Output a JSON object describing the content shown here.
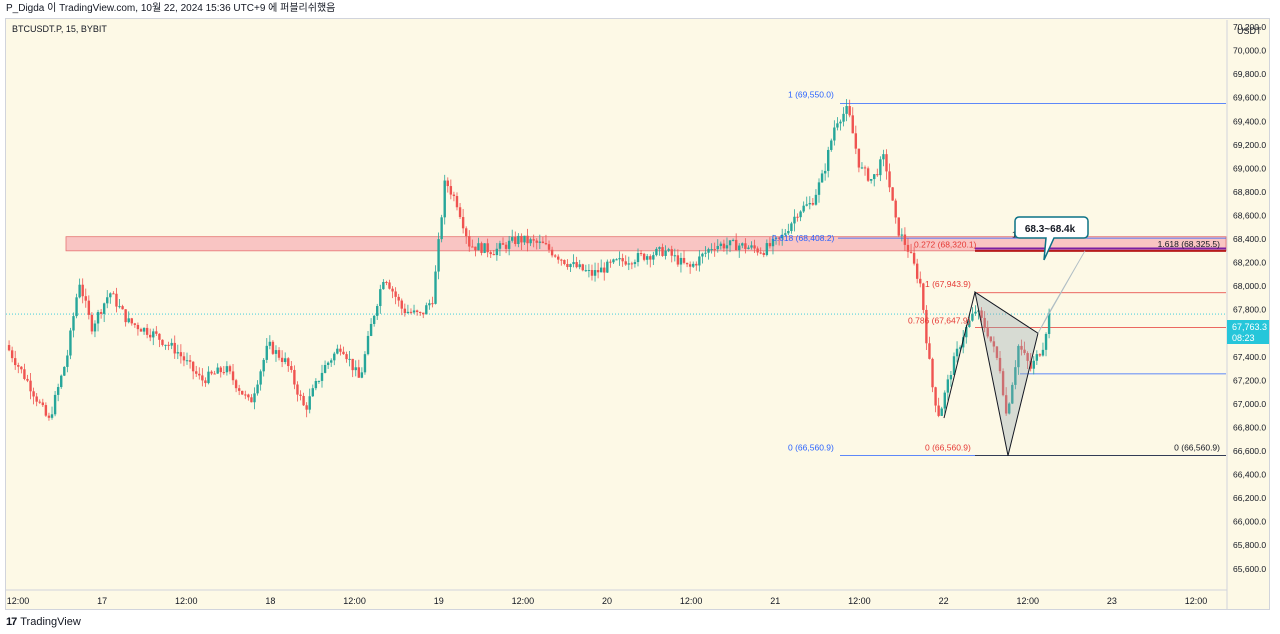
{
  "header": {
    "text": "P_Digda 이 TradingView.com, 10월 22, 2024 15:36 UTC+9 에 퍼블리쉬했음"
  },
  "symbol_label": "BTCUSDT.P, 15, BYBIT",
  "currency_label": "USDT",
  "footer": {
    "logo": "17",
    "brand": "TradingView"
  },
  "colors": {
    "up": "#26a69a",
    "down": "#ef5350",
    "background": "#fdf9e6",
    "zone": "#f7b3b7",
    "fib_blue": "#2962ff",
    "fib_red": "#e53935",
    "price_tag": "#26c6da"
  },
  "chart_data": {
    "type": "candlestick",
    "ylim": [
      65420,
      70260
    ],
    "y_ticks": [
      "70,200.0",
      "70,000.0",
      "69,800.0",
      "69,600.0",
      "69,400.0",
      "69,200.0",
      "69,000.0",
      "68,800.0",
      "68,600.0",
      "68,400.0",
      "68,200.0",
      "68,000.0",
      "67,800.0",
      "67,600.0",
      "67,400.0",
      "67,200.0",
      "67,000.0",
      "66,800.0",
      "66,600.0",
      "66,400.0",
      "66,200.0",
      "66,000.0",
      "65,800.0",
      "65,600.0"
    ],
    "x_ticks": [
      "12:00",
      "17",
      "12:00",
      "18",
      "12:00",
      "19",
      "12:00",
      "20",
      "12:00",
      "21",
      "12:00",
      "22",
      "12:00",
      "23",
      "12:00"
    ],
    "last_price": "67,763.3",
    "countdown": "08:23",
    "resistance_zone": {
      "low": 68300,
      "high": 68420
    },
    "annotations": {
      "callout": "68.3~68.4k",
      "fib_blue_top": "1 (69,550.0)",
      "fib_blue_mid": "0.618 (68,408.2)",
      "fib_blue_bottom": "0 (66,560.9)",
      "fib_red_top": "1 (67,943.9)",
      "fib_red_mid": "0.786 (67,647.9)",
      "fib_red_bottom": "0 (66,560.9)",
      "fib_red_ext": "0.272 (68,320.1)",
      "fib_black_ext": "1.618 (68,325.5)",
      "fib_black_bottom": "0 (66,560.9)",
      "label_one": "1"
    },
    "path_points": [
      {
        "x": 0.0,
        "y": 67500
      },
      {
        "x": 0.02,
        "y": 67150
      },
      {
        "x": 0.035,
        "y": 66850
      },
      {
        "x": 0.05,
        "y": 67400
      },
      {
        "x": 0.06,
        "y": 68050
      },
      {
        "x": 0.07,
        "y": 67650
      },
      {
        "x": 0.085,
        "y": 67950
      },
      {
        "x": 0.1,
        "y": 67700
      },
      {
        "x": 0.12,
        "y": 67600
      },
      {
        "x": 0.14,
        "y": 67450
      },
      {
        "x": 0.16,
        "y": 67200
      },
      {
        "x": 0.18,
        "y": 67300
      },
      {
        "x": 0.2,
        "y": 67000
      },
      {
        "x": 0.215,
        "y": 67500
      },
      {
        "x": 0.23,
        "y": 67350
      },
      {
        "x": 0.245,
        "y": 66950
      },
      {
        "x": 0.26,
        "y": 67300
      },
      {
        "x": 0.275,
        "y": 67500
      },
      {
        "x": 0.29,
        "y": 67200
      },
      {
        "x": 0.3,
        "y": 67700
      },
      {
        "x": 0.31,
        "y": 68100
      },
      {
        "x": 0.325,
        "y": 67800
      },
      {
        "x": 0.34,
        "y": 67750
      },
      {
        "x": 0.35,
        "y": 67900
      },
      {
        "x": 0.36,
        "y": 68900
      },
      {
        "x": 0.37,
        "y": 68700
      },
      {
        "x": 0.38,
        "y": 68350
      },
      {
        "x": 0.4,
        "y": 68300
      },
      {
        "x": 0.42,
        "y": 68400
      },
      {
        "x": 0.44,
        "y": 68350
      },
      {
        "x": 0.46,
        "y": 68200
      },
      {
        "x": 0.48,
        "y": 68100
      },
      {
        "x": 0.5,
        "y": 68200
      },
      {
        "x": 0.52,
        "y": 68250
      },
      {
        "x": 0.54,
        "y": 68300
      },
      {
        "x": 0.56,
        "y": 68150
      },
      {
        "x": 0.58,
        "y": 68350
      },
      {
        "x": 0.6,
        "y": 68350
      },
      {
        "x": 0.62,
        "y": 68300
      },
      {
        "x": 0.635,
        "y": 68400
      },
      {
        "x": 0.65,
        "y": 68650
      },
      {
        "x": 0.66,
        "y": 68700
      },
      {
        "x": 0.67,
        "y": 68950
      },
      {
        "x": 0.68,
        "y": 69400
      },
      {
        "x": 0.69,
        "y": 69500
      },
      {
        "x": 0.7,
        "y": 69000
      },
      {
        "x": 0.71,
        "y": 68900
      },
      {
        "x": 0.72,
        "y": 69100
      },
      {
        "x": 0.73,
        "y": 68500
      },
      {
        "x": 0.74,
        "y": 68300
      },
      {
        "x": 0.75,
        "y": 68000
      },
      {
        "x": 0.755,
        "y": 67500
      },
      {
        "x": 0.76,
        "y": 67100
      },
      {
        "x": 0.765,
        "y": 66900
      },
      {
        "x": 0.775,
        "y": 67300
      },
      {
        "x": 0.785,
        "y": 67600
      },
      {
        "x": 0.795,
        "y": 67800
      },
      {
        "x": 0.805,
        "y": 67600
      },
      {
        "x": 0.815,
        "y": 67300
      },
      {
        "x": 0.82,
        "y": 66900
      },
      {
        "x": 0.83,
        "y": 67500
      },
      {
        "x": 0.84,
        "y": 67300
      },
      {
        "x": 0.85,
        "y": 67500
      },
      {
        "x": 0.855,
        "y": 67760
      }
    ]
  }
}
